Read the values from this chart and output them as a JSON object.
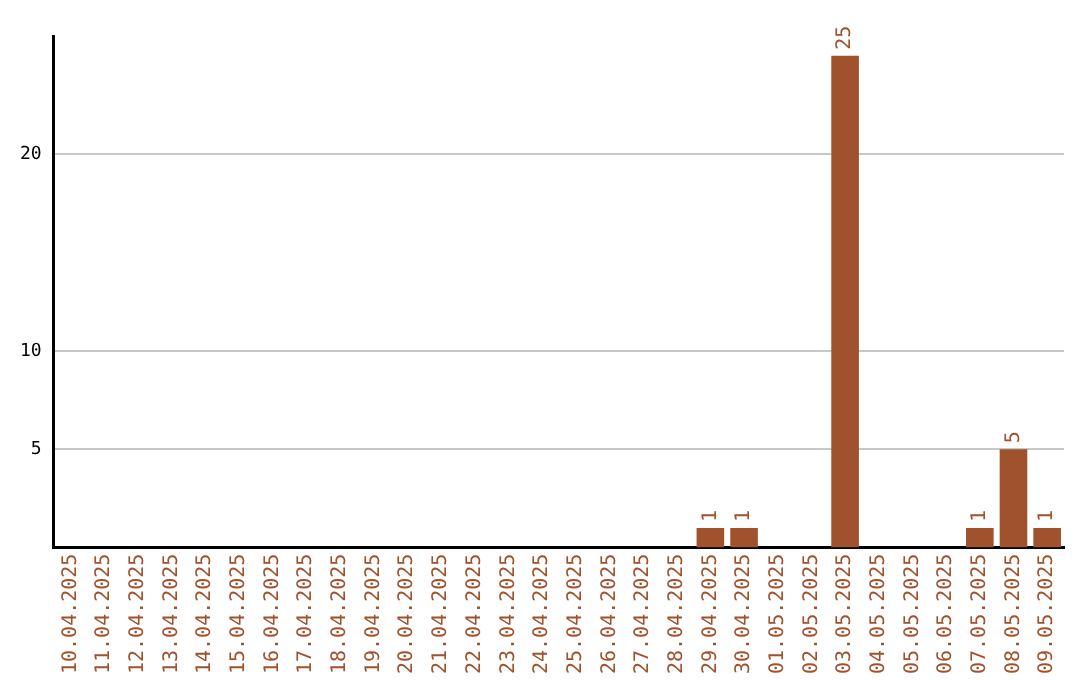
{
  "chart_data": {
    "type": "bar",
    "categories": [
      "10.04.2025",
      "11.04.2025",
      "12.04.2025",
      "13.04.2025",
      "14.04.2025",
      "15.04.2025",
      "16.04.2025",
      "17.04.2025",
      "18.04.2025",
      "19.04.2025",
      "20.04.2025",
      "21.04.2025",
      "22.04.2025",
      "23.04.2025",
      "24.04.2025",
      "25.04.2025",
      "26.04.2025",
      "27.04.2025",
      "28.04.2025",
      "29.04.2025",
      "30.04.2025",
      "01.05.2025",
      "02.05.2025",
      "03.05.2025",
      "04.05.2025",
      "05.05.2025",
      "06.05.2025",
      "07.05.2025",
      "08.05.2025",
      "09.05.2025"
    ],
    "values": [
      0,
      0,
      0,
      0,
      0,
      0,
      0,
      0,
      0,
      0,
      0,
      0,
      0,
      0,
      0,
      0,
      0,
      0,
      0,
      1,
      1,
      0,
      0,
      25,
      0,
      0,
      0,
      1,
      5,
      1
    ],
    "value_labels": [
      null,
      null,
      null,
      null,
      null,
      null,
      null,
      null,
      null,
      null,
      null,
      null,
      null,
      null,
      null,
      null,
      null,
      null,
      null,
      "1",
      "1",
      null,
      null,
      "25",
      null,
      null,
      null,
      "1",
      "5",
      "1"
    ],
    "color": "#a0522d",
    "ylim": [
      0,
      26
    ],
    "yticks": [
      5,
      10,
      20
    ],
    "grid": "y",
    "legend": false
  }
}
